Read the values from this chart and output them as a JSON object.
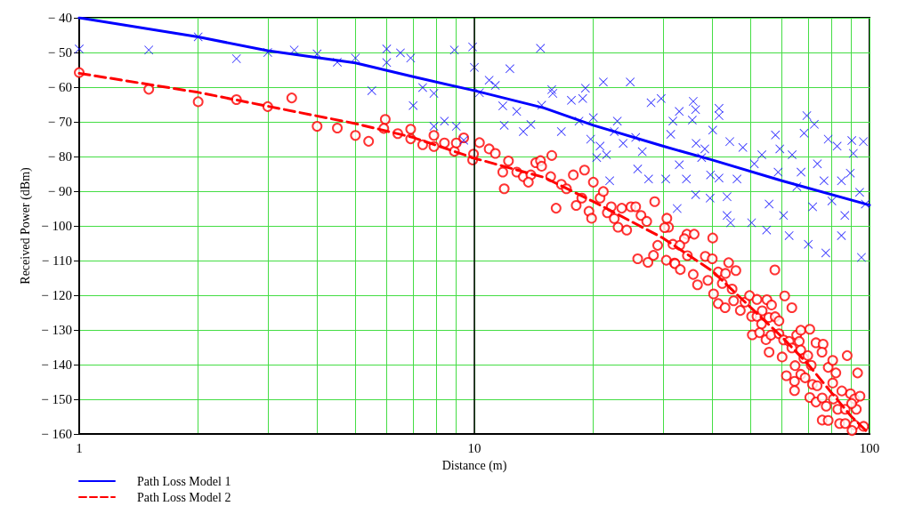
{
  "chart_data": {
    "type": "scatter",
    "xlabel": "Distance (m)",
    "ylabel": "Received Power (dBm)",
    "log": "x",
    "grid": true,
    "legend": "bottom left",
    "xlim": [
      1,
      100
    ],
    "xticks": [
      1,
      {
        "value": 2,
        "label": null
      },
      {
        "value": 3,
        "label": null
      },
      {
        "value": 4,
        "label": null
      },
      {
        "value": 5,
        "label": null
      },
      {
        "value": 6,
        "label": null
      },
      {
        "value": 7,
        "label": null
      },
      {
        "value": 8,
        "label": null
      },
      {
        "value": 9,
        "label": null
      },
      10,
      {
        "value": 20,
        "label": null
      },
      {
        "value": 30,
        "label": null
      },
      {
        "value": 40,
        "label": null
      },
      {
        "value": 50,
        "label": null
      },
      {
        "value": 60,
        "label": null
      },
      {
        "value": 70,
        "label": null
      },
      {
        "value": 80,
        "label": null
      },
      {
        "value": 90,
        "label": null
      },
      100
    ],
    "ylim": [
      -160,
      -40
    ],
    "yticks": [
      {
        "value": -160,
        "label": "− 160"
      },
      {
        "value": -150,
        "label": "− 150"
      },
      {
        "value": -140,
        "label": "− 140"
      },
      {
        "value": -130,
        "label": "− 130"
      },
      {
        "value": -120,
        "label": "− 120"
      },
      {
        "value": -110,
        "label": "− 110"
      },
      {
        "value": -100,
        "label": "− 100"
      },
      {
        "value": -90,
        "label": "− 90"
      },
      {
        "value": -80,
        "label": "− 80"
      },
      {
        "value": -70,
        "label": "− 70"
      },
      {
        "value": -60,
        "label": "− 60"
      },
      {
        "value": -50,
        "label": "− 50"
      },
      {
        "value": -40,
        "label": "− 40"
      }
    ],
    "ref_lines": [
      {
        "axis": "x",
        "value": 10,
        "color": "#000000"
      }
    ],
    "series": [
      {
        "type": "line",
        "name": "Path Loss Model 1",
        "color": "#0000ff",
        "line_style": "solid",
        "marker": "none",
        "x": [
          1,
          2,
          3,
          5,
          7,
          10,
          15,
          20,
          30,
          40,
          60,
          100
        ],
        "values": [
          -40,
          -45.5,
          -49.5,
          -53,
          -57,
          -61,
          -66,
          -71,
          -77,
          -81,
          -87,
          -94
        ]
      },
      {
        "type": "line",
        "name": "Path Loss Model 2",
        "color": "#ff0000",
        "line_style": "dashed",
        "marker": "none",
        "x": [
          1,
          2,
          3,
          5,
          7,
          10,
          15,
          20,
          30,
          40,
          50,
          60,
          70,
          80,
          90,
          100
        ],
        "values": [
          -56,
          -61.5,
          -65.5,
          -70.5,
          -74.5,
          -80.5,
          -86,
          -93,
          -103.5,
          -113,
          -123.5,
          -132,
          -140,
          -148,
          -155,
          -160
        ]
      },
      {
        "color": "#0000ff",
        "marker": "cross",
        "x": [
          1.0,
          1.5,
          2,
          2.5,
          3,
          3.5,
          4,
          4.5,
          5,
          5.5,
          6,
          6,
          6.5,
          6.9,
          7,
          7.4,
          7.9,
          7.9,
          8.4,
          8.9,
          9,
          9.4,
          9.9,
          10,
          14.7,
          12.3,
          10.9,
          11.3,
          10.3,
          15.7,
          15.8,
          19.1,
          21.2,
          24.8,
          11.8,
          12.8,
          14.8,
          17.6,
          18.8,
          11.9,
          13.3,
          13.9,
          16.6,
          18.4,
          20,
          19.7,
          20.8,
          20.4,
          21.6,
          23,
          22.6,
          23.8,
          25.6,
          26.6,
          25.9,
          27.6,
          22,
          28,
          29.7,
          30.5,
          31.4,
          31.8,
          33,
          35.8,
          36.3,
          35.6,
          33,
          34.4,
          32.6,
          36.4,
          38.3,
          37.6,
          40.1,
          41.6,
          41.6,
          36.3,
          39.5,
          39.6,
          41.6,
          43.6,
          43.6,
          44.5,
          44.3,
          46.2,
          47.8,
          50.3,
          51.1,
          53.4,
          54.9,
          55.7,
          57.8,
          59.3,
          58.7,
          60.6,
          62.6,
          63.7,
          65.5,
          67.1,
          69.4,
          72.5,
          68.3,
          70,
          71.8,
          73.8,
          76.7,
          78.6,
          77.5,
          80.3,
          82.8,
          84.9,
          86.6,
          84.9,
          90.2,
          91,
          89.4,
          94.4,
          96.5,
          97.6,
          95.4
        ],
        "values": [
          -49,
          -49.3,
          -45.5,
          -51.8,
          -50,
          -49.3,
          -50.4,
          -52.8,
          -51.6,
          -61,
          -49,
          -52.9,
          -50.1,
          -51.6,
          -65.3,
          -60.1,
          -61.8,
          -71.3,
          -69.8,
          -49.3,
          -71.3,
          -75.3,
          -48.4,
          -54.3,
          -48.8,
          -54.7,
          -58,
          -59.5,
          -61.6,
          -60.7,
          -61.8,
          -60.3,
          -58.5,
          -58.5,
          -65.4,
          -67,
          -65.2,
          -63.8,
          -63.3,
          -71,
          -72.8,
          -70.8,
          -72.8,
          -69.8,
          -68.8,
          -75,
          -77,
          -80.3,
          -79.5,
          -69.8,
          -72.8,
          -76.2,
          -74.5,
          -78.6,
          -83.6,
          -86.5,
          -87,
          -64.5,
          -63.3,
          -86.5,
          -73.6,
          -69.8,
          -67,
          -64.1,
          -66.5,
          -69.5,
          -82.4,
          -86.5,
          -95,
          -76.2,
          -77.8,
          -80.3,
          -72.4,
          -66.1,
          -68.2,
          -91,
          -92,
          -85.3,
          -86.2,
          -91.6,
          -97,
          -99.1,
          -75.7,
          -86.5,
          -77.4,
          -99.1,
          -82.1,
          -79.5,
          -101.2,
          -93.7,
          -73.8,
          -77.8,
          -84.5,
          -97,
          -102.8,
          -79.5,
          -88.7,
          -84.5,
          -68.2,
          -70.7,
          -73.3,
          -105.3,
          -94.5,
          -82.1,
          -87,
          -75,
          -107.8,
          -92.8,
          -77,
          -87,
          -97,
          -102.8,
          -75.4,
          -79.1,
          -84.8,
          -90.3,
          -75.7,
          -93.7,
          -109.1
        ]
      },
      {
        "color": "#ff0000",
        "marker": "circle",
        "x": [
          1.0,
          1.5,
          2,
          2.5,
          3,
          3.45,
          4,
          4.5,
          5,
          5.4,
          5.95,
          5.9,
          6.4,
          6.9,
          6.9,
          7.4,
          7.9,
          7.9,
          8.4,
          8.9,
          9,
          9.4,
          9.9,
          9.95,
          10.3,
          10.9,
          11.3,
          12.2,
          11.8,
          11.9,
          12.8,
          13.3,
          13.9,
          13.7,
          14.3,
          14.7,
          14.8,
          15.7,
          15.6,
          16.1,
          16.6,
          17.1,
          17.8,
          19,
          20,
          18.1,
          18.7,
          19.5,
          19.8,
          20.8,
          21.2,
          21.7,
          22.2,
          22.6,
          23.1,
          23.6,
          24.3,
          24.9,
          25.6,
          26.4,
          27.3,
          28.6,
          30.7,
          31,
          30.3,
          34.5,
          36,
          34,
          40.1,
          31.8,
          29.1,
          33.1,
          25.9,
          27.5,
          28.4,
          30.6,
          32.1,
          38.4,
          44,
          32.2,
          33.2,
          34.6,
          35.8,
          36.7,
          39,
          40,
          41.4,
          43.2,
          45.9,
          40.3,
          41.4,
          42.4,
          43.1,
          44.9,
          45.3,
          47.1,
          48.4,
          49.7,
          51.9,
          50.3,
          51.9,
          53.5,
          55,
          56.5,
          57.6,
          53.3,
          55.6,
          57.7,
          59,
          61,
          63.6,
          50.5,
          52.7,
          54.7,
          56.3,
          55.7,
          59,
          60.6,
          60.1,
          62.6,
          65.4,
          67,
          70.6,
          63.6,
          64.8,
          66.4,
          67,
          68.2,
          69.8,
          71.2,
          73.2,
          76.3,
          75.8,
          78.6,
          80.7,
          82.2,
          87.8,
          93.3,
          61.6,
          64.6,
          67,
          68.7,
          64.6,
          71.7,
          73.7,
          70.6,
          73.2,
          75.9,
          77.7,
          80.7,
          81,
          85.1,
          83.1,
          86.8,
          89.5,
          91.6,
          92.6,
          90.1,
          94.6,
          75.9,
          78.6,
          84,
          86.8,
          91.6,
          96.6,
          90.3
        ],
        "values": [
          -55.8,
          -60.6,
          -64.2,
          -63.6,
          -65.6,
          -63.1,
          -71.3,
          -71.8,
          -73.9,
          -75.6,
          -69.3,
          -71.9,
          -73.4,
          -72.1,
          -74.9,
          -76.6,
          -73.9,
          -77.1,
          -76.1,
          -78.5,
          -76.1,
          -74.6,
          -81,
          -79.3,
          -76,
          -77.8,
          -79.1,
          -81.3,
          -84.5,
          -89.3,
          -84.5,
          -85.8,
          -85.3,
          -87.4,
          -81.8,
          -81.2,
          -82.8,
          -79.7,
          -85.8,
          -94.9,
          -88,
          -89.3,
          -85.3,
          -83.9,
          -87.4,
          -94.1,
          -92,
          -95.8,
          -97.8,
          -92,
          -90.1,
          -96.2,
          -94.5,
          -97.9,
          -100.4,
          -94.9,
          -101.2,
          -94.5,
          -94.5,
          -97,
          -98.7,
          -93,
          -97.8,
          -100.4,
          -100.5,
          -102.4,
          -102.4,
          -103.7,
          -103.5,
          -105.3,
          -105.6,
          -105.6,
          -109.5,
          -110.5,
          -108.5,
          -109.9,
          -110.7,
          -108.8,
          -110.6,
          -110.9,
          -112.6,
          -108.6,
          -114,
          -117,
          -115.7,
          -109.5,
          -113.3,
          -113.7,
          -112.9,
          -119.6,
          -122.4,
          -116.6,
          -123.6,
          -118.2,
          -121.6,
          -124.4,
          -122,
          -120.1,
          -121.2,
          -126.1,
          -126.1,
          -124.5,
          -121.3,
          -122.8,
          -112.7,
          -128.3,
          -126.4,
          -126.2,
          -127.4,
          -120.2,
          -123.6,
          -131.4,
          -130.8,
          -132.8,
          -131.5,
          -136.4,
          -131.1,
          -132.9,
          -137.8,
          -133.3,
          -131.5,
          -130.1,
          -129.8,
          -135.2,
          -140.3,
          -133.3,
          -135.8,
          -138.2,
          -137.4,
          -140.2,
          -133.7,
          -134.1,
          -136.4,
          -140.8,
          -138.8,
          -142.4,
          -137.4,
          -142.4,
          -143.2,
          -144.8,
          -142.8,
          -143.8,
          -147.5,
          -145.7,
          -146.1,
          -149.5,
          -150.8,
          -149.6,
          -152,
          -145.3,
          -149.9,
          -147.6,
          -152.9,
          -152.9,
          -148.4,
          -149.9,
          -152.9,
          -151.2,
          -149.1,
          -156,
          -156.1,
          -157,
          -157,
          -157.4,
          -157.8,
          -159
        ]
      }
    ]
  }
}
